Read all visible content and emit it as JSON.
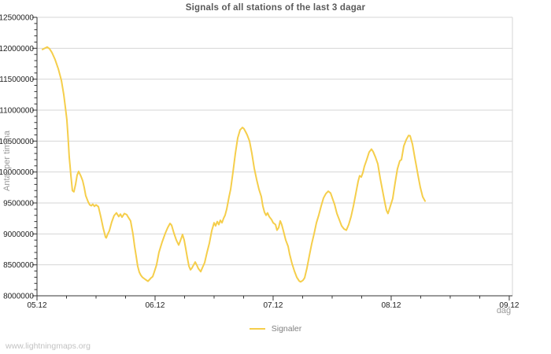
{
  "page": {
    "title": "Signals of all stations of the last 3 dagar",
    "watermark": "www.lightningmaps.org"
  },
  "colors": {
    "series_line": "#F5CE4B",
    "grid": "#d6d6d6",
    "axis": "#333333",
    "tick_label": "#222222",
    "axis_title": "#999999",
    "title": "#5a5a5a",
    "background": "#ffffff"
  },
  "chart_data": {
    "type": "line",
    "title": "Signals of all stations of the last 3 dagar",
    "xlabel": "dag",
    "ylabel": "Antal per timma",
    "xlim": [
      0,
      4.027
    ],
    "ylim": [
      8000000,
      12500000
    ],
    "grid": "horizontal",
    "x_minor_step": 0.25,
    "y_minor_step": 100000,
    "x_ticks": [
      {
        "pos": 0,
        "label": "05.12"
      },
      {
        "pos": 1,
        "label": "06.12"
      },
      {
        "pos": 2,
        "label": "07.12"
      },
      {
        "pos": 3,
        "label": "08.12"
      },
      {
        "pos": 4,
        "label": "09.12"
      }
    ],
    "y_ticks": [
      {
        "pos": 8000000,
        "label": "8000000"
      },
      {
        "pos": 8500000,
        "label": "8500000"
      },
      {
        "pos": 9000000,
        "label": "9000000"
      },
      {
        "pos": 9500000,
        "label": "9500000"
      },
      {
        "pos": 10000000,
        "label": "10000000"
      },
      {
        "pos": 10500000,
        "label": "10500000"
      },
      {
        "pos": 11000000,
        "label": "11000000"
      },
      {
        "pos": 11500000,
        "label": "11500000"
      },
      {
        "pos": 12000000,
        "label": "12000000"
      },
      {
        "pos": 12500000,
        "label": "12500000"
      }
    ],
    "legend": {
      "position": "bottom-center",
      "entries": [
        {
          "label": "Signaler",
          "color": "#F5CE4B"
        }
      ]
    },
    "series": [
      {
        "name": "Signaler",
        "color": "#F5CE4B",
        "points": [
          [
            0.047,
            11980000
          ],
          [
            0.067,
            12000000
          ],
          [
            0.087,
            12020000
          ],
          [
            0.107,
            11990000
          ],
          [
            0.127,
            11930000
          ],
          [
            0.153,
            11820000
          ],
          [
            0.18,
            11670000
          ],
          [
            0.207,
            11480000
          ],
          [
            0.227,
            11250000
          ],
          [
            0.24,
            11050000
          ],
          [
            0.253,
            10850000
          ],
          [
            0.26,
            10650000
          ],
          [
            0.267,
            10450000
          ],
          [
            0.273,
            10250000
          ],
          [
            0.28,
            10100000
          ],
          [
            0.287,
            9950000
          ],
          [
            0.3,
            9700000
          ],
          [
            0.313,
            9680000
          ],
          [
            0.327,
            9800000
          ],
          [
            0.34,
            9950000
          ],
          [
            0.353,
            10010000
          ],
          [
            0.373,
            9930000
          ],
          [
            0.387,
            9860000
          ],
          [
            0.4,
            9750000
          ],
          [
            0.413,
            9620000
          ],
          [
            0.433,
            9520000
          ],
          [
            0.447,
            9470000
          ],
          [
            0.46,
            9455000
          ],
          [
            0.473,
            9480000
          ],
          [
            0.487,
            9445000
          ],
          [
            0.5,
            9470000
          ],
          [
            0.52,
            9440000
          ],
          [
            0.54,
            9280000
          ],
          [
            0.56,
            9100000
          ],
          [
            0.58,
            8950000
          ],
          [
            0.587,
            8935000
          ],
          [
            0.6,
            9000000
          ],
          [
            0.613,
            9050000
          ],
          [
            0.633,
            9190000
          ],
          [
            0.653,
            9295000
          ],
          [
            0.673,
            9340000
          ],
          [
            0.693,
            9280000
          ],
          [
            0.707,
            9320000
          ],
          [
            0.72,
            9270000
          ],
          [
            0.74,
            9330000
          ],
          [
            0.76,
            9310000
          ],
          [
            0.773,
            9270000
          ],
          [
            0.793,
            9210000
          ],
          [
            0.813,
            9000000
          ],
          [
            0.827,
            8800000
          ],
          [
            0.84,
            8640000
          ],
          [
            0.853,
            8480000
          ],
          [
            0.867,
            8380000
          ],
          [
            0.88,
            8330000
          ],
          [
            0.893,
            8300000
          ],
          [
            0.907,
            8280000
          ],
          [
            0.92,
            8260000
          ],
          [
            0.94,
            8235000
          ],
          [
            0.953,
            8260000
          ],
          [
            0.967,
            8290000
          ],
          [
            0.98,
            8310000
          ],
          [
            0.993,
            8380000
          ],
          [
            1.013,
            8500000
          ],
          [
            1.033,
            8700000
          ],
          [
            1.06,
            8870000
          ],
          [
            1.087,
            9010000
          ],
          [
            1.107,
            9100000
          ],
          [
            1.127,
            9170000
          ],
          [
            1.14,
            9140000
          ],
          [
            1.16,
            9010000
          ],
          [
            1.18,
            8900000
          ],
          [
            1.2,
            8820000
          ],
          [
            1.213,
            8880000
          ],
          [
            1.233,
            8990000
          ],
          [
            1.247,
            8900000
          ],
          [
            1.26,
            8760000
          ],
          [
            1.273,
            8620000
          ],
          [
            1.287,
            8480000
          ],
          [
            1.3,
            8420000
          ],
          [
            1.313,
            8450000
          ],
          [
            1.327,
            8500000
          ],
          [
            1.34,
            8545000
          ],
          [
            1.353,
            8500000
          ],
          [
            1.367,
            8440000
          ],
          [
            1.387,
            8390000
          ],
          [
            1.4,
            8450000
          ],
          [
            1.42,
            8535000
          ],
          [
            1.44,
            8700000
          ],
          [
            1.46,
            8850000
          ],
          [
            1.48,
            9050000
          ],
          [
            1.5,
            9180000
          ],
          [
            1.513,
            9130000
          ],
          [
            1.527,
            9200000
          ],
          [
            1.54,
            9150000
          ],
          [
            1.553,
            9220000
          ],
          [
            1.567,
            9180000
          ],
          [
            1.58,
            9250000
          ],
          [
            1.593,
            9300000
          ],
          [
            1.607,
            9400000
          ],
          [
            1.627,
            9600000
          ],
          [
            1.64,
            9720000
          ],
          [
            1.66,
            10000000
          ],
          [
            1.68,
            10300000
          ],
          [
            1.7,
            10550000
          ],
          [
            1.72,
            10680000
          ],
          [
            1.74,
            10720000
          ],
          [
            1.753,
            10700000
          ],
          [
            1.767,
            10650000
          ],
          [
            1.78,
            10600000
          ],
          [
            1.8,
            10500000
          ],
          [
            1.82,
            10300000
          ],
          [
            1.84,
            10060000
          ],
          [
            1.86,
            9880000
          ],
          [
            1.88,
            9720000
          ],
          [
            1.9,
            9600000
          ],
          [
            1.913,
            9450000
          ],
          [
            1.927,
            9350000
          ],
          [
            1.94,
            9300000
          ],
          [
            1.953,
            9340000
          ],
          [
            1.967,
            9280000
          ],
          [
            1.987,
            9230000
          ],
          [
            2.0,
            9180000
          ],
          [
            2.02,
            9150000
          ],
          [
            2.033,
            9060000
          ],
          [
            2.047,
            9100000
          ],
          [
            2.06,
            9210000
          ],
          [
            2.073,
            9150000
          ],
          [
            2.087,
            9050000
          ],
          [
            2.107,
            8900000
          ],
          [
            2.127,
            8800000
          ],
          [
            2.14,
            8670000
          ],
          [
            2.16,
            8520000
          ],
          [
            2.18,
            8400000
          ],
          [
            2.2,
            8300000
          ],
          [
            2.22,
            8240000
          ],
          [
            2.233,
            8225000
          ],
          [
            2.253,
            8250000
          ],
          [
            2.267,
            8290000
          ],
          [
            2.287,
            8450000
          ],
          [
            2.307,
            8650000
          ],
          [
            2.327,
            8840000
          ],
          [
            2.347,
            9000000
          ],
          [
            2.367,
            9180000
          ],
          [
            2.387,
            9305000
          ],
          [
            2.407,
            9450000
          ],
          [
            2.427,
            9580000
          ],
          [
            2.447,
            9650000
          ],
          [
            2.467,
            9690000
          ],
          [
            2.487,
            9660000
          ],
          [
            2.507,
            9550000
          ],
          [
            2.52,
            9480000
          ],
          [
            2.54,
            9330000
          ],
          [
            2.56,
            9230000
          ],
          [
            2.58,
            9130000
          ],
          [
            2.6,
            9080000
          ],
          [
            2.62,
            9060000
          ],
          [
            2.64,
            9150000
          ],
          [
            2.66,
            9280000
          ],
          [
            2.68,
            9450000
          ],
          [
            2.7,
            9650000
          ],
          [
            2.72,
            9850000
          ],
          [
            2.733,
            9940000
          ],
          [
            2.747,
            9920000
          ],
          [
            2.76,
            9990000
          ],
          [
            2.773,
            10090000
          ],
          [
            2.793,
            10200000
          ],
          [
            2.813,
            10320000
          ],
          [
            2.833,
            10370000
          ],
          [
            2.847,
            10330000
          ],
          [
            2.867,
            10240000
          ],
          [
            2.887,
            10130000
          ],
          [
            2.907,
            9900000
          ],
          [
            2.927,
            9700000
          ],
          [
            2.947,
            9500000
          ],
          [
            2.96,
            9380000
          ],
          [
            2.973,
            9330000
          ],
          [
            2.993,
            9450000
          ],
          [
            3.013,
            9570000
          ],
          [
            3.033,
            9820000
          ],
          [
            3.053,
            10050000
          ],
          [
            3.073,
            10180000
          ],
          [
            3.087,
            10200000
          ],
          [
            3.107,
            10420000
          ],
          [
            3.127,
            10520000
          ],
          [
            3.147,
            10590000
          ],
          [
            3.16,
            10585000
          ],
          [
            3.18,
            10450000
          ],
          [
            3.2,
            10230000
          ],
          [
            3.213,
            10100000
          ],
          [
            3.227,
            9950000
          ],
          [
            3.247,
            9750000
          ],
          [
            3.267,
            9600000
          ],
          [
            3.287,
            9530000
          ]
        ]
      }
    ]
  }
}
